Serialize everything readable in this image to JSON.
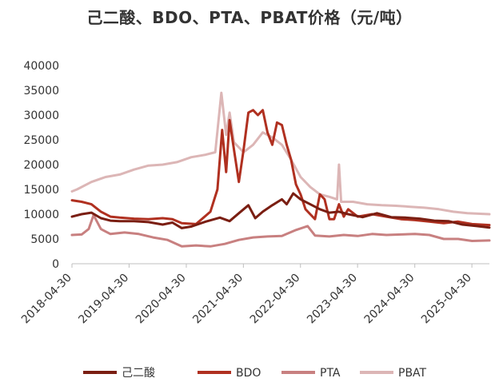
{
  "chart_data": {
    "type": "line",
    "title": "己二酸、BDO、PTA、PBAT价格（元/吨）",
    "xlabel": "",
    "ylabel": "",
    "ylim": [
      0,
      40000
    ],
    "yticks": [
      0,
      5000,
      10000,
      15000,
      20000,
      25000,
      30000,
      35000,
      40000
    ],
    "xlim": [
      "2018-04-30",
      "2025-08-20"
    ],
    "xticks": [
      "2018-04-30",
      "2019-04-30",
      "2020-04-30",
      "2021-04-30",
      "2022-04-30",
      "2023-04-30",
      "2024-04-30",
      "2025-04-30"
    ],
    "grid": false,
    "legend": "bottom",
    "series": [
      {
        "name": "己二酸",
        "color": "#7a1e12",
        "points": [
          [
            "2018-04-30",
            9500
          ],
          [
            "2018-07-01",
            10000
          ],
          [
            "2018-09-01",
            10300
          ],
          [
            "2018-11-01",
            9200
          ],
          [
            "2019-01-01",
            8700
          ],
          [
            "2019-03-01",
            8600
          ],
          [
            "2019-06-01",
            8600
          ],
          [
            "2019-09-01",
            8400
          ],
          [
            "2019-12-01",
            7900
          ],
          [
            "2020-02-01",
            8300
          ],
          [
            "2020-04-01",
            7200
          ],
          [
            "2020-06-01",
            7500
          ],
          [
            "2020-09-01",
            8500
          ],
          [
            "2020-12-01",
            9300
          ],
          [
            "2021-02-01",
            8600
          ],
          [
            "2021-04-01",
            10200
          ],
          [
            "2021-06-01",
            11800
          ],
          [
            "2021-07-15",
            9200
          ],
          [
            "2021-09-01",
            10500
          ],
          [
            "2021-11-01",
            11800
          ],
          [
            "2022-01-01",
            13000
          ],
          [
            "2022-02-01",
            12000
          ],
          [
            "2022-03-15",
            14200
          ],
          [
            "2022-05-01",
            13000
          ],
          [
            "2022-07-01",
            12000
          ],
          [
            "2022-09-01",
            11000
          ],
          [
            "2022-11-01",
            10300
          ],
          [
            "2023-01-01",
            10500
          ],
          [
            "2023-03-01",
            10000
          ],
          [
            "2023-06-01",
            9400
          ],
          [
            "2023-09-01",
            10200
          ],
          [
            "2023-12-01",
            9400
          ],
          [
            "2024-03-01",
            9300
          ],
          [
            "2024-06-01",
            9100
          ],
          [
            "2024-09-01",
            8700
          ],
          [
            "2024-12-01",
            8600
          ],
          [
            "2025-03-01",
            7900
          ],
          [
            "2025-06-01",
            7600
          ],
          [
            "2025-08-20",
            7300
          ]
        ]
      },
      {
        "name": "BDO",
        "color": "#b03020",
        "points": [
          [
            "2018-04-30",
            12800
          ],
          [
            "2018-07-01",
            12500
          ],
          [
            "2018-09-01",
            12000
          ],
          [
            "2018-11-01",
            10500
          ],
          [
            "2019-01-01",
            9500
          ],
          [
            "2019-03-01",
            9300
          ],
          [
            "2019-06-01",
            9100
          ],
          [
            "2019-09-01",
            9000
          ],
          [
            "2019-12-01",
            9200
          ],
          [
            "2020-02-01",
            9000
          ],
          [
            "2020-04-01",
            8200
          ],
          [
            "2020-07-01",
            8000
          ],
          [
            "2020-10-01",
            10500
          ],
          [
            "2020-11-15",
            15000
          ],
          [
            "2020-12-15",
            27000
          ],
          [
            "2021-01-10",
            18500
          ],
          [
            "2021-02-01",
            29000
          ],
          [
            "2021-03-01",
            23000
          ],
          [
            "2021-04-01",
            16500
          ],
          [
            "2021-05-01",
            23000
          ],
          [
            "2021-06-01",
            30500
          ],
          [
            "2021-07-01",
            31000
          ],
          [
            "2021-08-01",
            30000
          ],
          [
            "2021-09-01",
            31000
          ],
          [
            "2021-10-01",
            26500
          ],
          [
            "2021-11-01",
            24000
          ],
          [
            "2021-12-01",
            28500
          ],
          [
            "2022-01-01",
            28000
          ],
          [
            "2022-02-01",
            24000
          ],
          [
            "2022-03-01",
            21000
          ],
          [
            "2022-04-01",
            16000
          ],
          [
            "2022-05-01",
            14000
          ],
          [
            "2022-06-01",
            11000
          ],
          [
            "2022-07-01",
            10000
          ],
          [
            "2022-08-01",
            9000
          ],
          [
            "2022-09-01",
            14000
          ],
          [
            "2022-10-01",
            13000
          ],
          [
            "2022-11-01",
            9000
          ],
          [
            "2022-12-01",
            9000
          ],
          [
            "2023-01-01",
            12000
          ],
          [
            "2023-02-01",
            9500
          ],
          [
            "2023-03-01",
            11000
          ],
          [
            "2023-05-01",
            9500
          ],
          [
            "2023-08-01",
            10000
          ],
          [
            "2023-11-01",
            9500
          ],
          [
            "2024-02-01",
            9000
          ],
          [
            "2024-05-01",
            8800
          ],
          [
            "2024-08-01",
            8500
          ],
          [
            "2024-11-01",
            8200
          ],
          [
            "2025-02-01",
            8500
          ],
          [
            "2025-05-01",
            8000
          ],
          [
            "2025-08-20",
            7800
          ]
        ]
      },
      {
        "name": "PTA",
        "color": "#c88080",
        "points": [
          [
            "2018-04-30",
            5800
          ],
          [
            "2018-07-01",
            5900
          ],
          [
            "2018-08-15",
            7000
          ],
          [
            "2018-09-15",
            9800
          ],
          [
            "2018-11-01",
            7000
          ],
          [
            "2019-01-01",
            6000
          ],
          [
            "2019-04-01",
            6300
          ],
          [
            "2019-07-01",
            6000
          ],
          [
            "2019-10-01",
            5300
          ],
          [
            "2020-01-01",
            4800
          ],
          [
            "2020-04-01",
            3500
          ],
          [
            "2020-07-01",
            3700
          ],
          [
            "2020-10-01",
            3500
          ],
          [
            "2021-01-01",
            4000
          ],
          [
            "2021-04-01",
            4800
          ],
          [
            "2021-07-01",
            5300
          ],
          [
            "2021-10-01",
            5500
          ],
          [
            "2022-01-01",
            5600
          ],
          [
            "2022-04-01",
            6800
          ],
          [
            "2022-06-15",
            7600
          ],
          [
            "2022-08-01",
            5700
          ],
          [
            "2022-11-01",
            5500
          ],
          [
            "2023-02-01",
            5800
          ],
          [
            "2023-05-01",
            5600
          ],
          [
            "2023-08-01",
            6000
          ],
          [
            "2023-11-01",
            5800
          ],
          [
            "2024-02-01",
            5900
          ],
          [
            "2024-05-01",
            6000
          ],
          [
            "2024-08-01",
            5800
          ],
          [
            "2024-11-01",
            5000
          ],
          [
            "2025-02-01",
            5000
          ],
          [
            "2025-05-01",
            4600
          ],
          [
            "2025-08-20",
            4700
          ]
        ]
      },
      {
        "name": "PBAT",
        "color": "#dcb6b6",
        "points": [
          [
            "2018-04-30",
            14600
          ],
          [
            "2018-06-01",
            15000
          ],
          [
            "2018-09-01",
            16500
          ],
          [
            "2018-12-01",
            17500
          ],
          [
            "2019-03-01",
            18000
          ],
          [
            "2019-06-01",
            19000
          ],
          [
            "2019-09-01",
            19800
          ],
          [
            "2019-12-01",
            20000
          ],
          [
            "2020-03-01",
            20500
          ],
          [
            "2020-06-01",
            21500
          ],
          [
            "2020-09-01",
            22000
          ],
          [
            "2020-11-01",
            22500
          ],
          [
            "2020-12-10",
            34500
          ],
          [
            "2021-01-10",
            26000
          ],
          [
            "2021-02-01",
            30500
          ],
          [
            "2021-03-01",
            24500
          ],
          [
            "2021-05-01",
            22500
          ],
          [
            "2021-07-01",
            24000
          ],
          [
            "2021-09-01",
            26500
          ],
          [
            "2021-11-01",
            25500
          ],
          [
            "2022-01-01",
            24000
          ],
          [
            "2022-03-01",
            21000
          ],
          [
            "2022-05-01",
            17500
          ],
          [
            "2022-07-01",
            15500
          ],
          [
            "2022-09-01",
            14000
          ],
          [
            "2022-11-01",
            13500
          ],
          [
            "2022-12-20",
            13000
          ],
          [
            "2023-01-01",
            20000
          ],
          [
            "2023-01-15",
            12500
          ],
          [
            "2023-04-01",
            12500
          ],
          [
            "2023-07-01",
            12000
          ],
          [
            "2023-10-01",
            11800
          ],
          [
            "2024-01-01",
            11700
          ],
          [
            "2024-04-01",
            11500
          ],
          [
            "2024-07-01",
            11300
          ],
          [
            "2024-10-01",
            11000
          ],
          [
            "2025-01-01",
            10500
          ],
          [
            "2025-04-01",
            10200
          ],
          [
            "2025-08-20",
            10000
          ]
        ]
      }
    ]
  }
}
